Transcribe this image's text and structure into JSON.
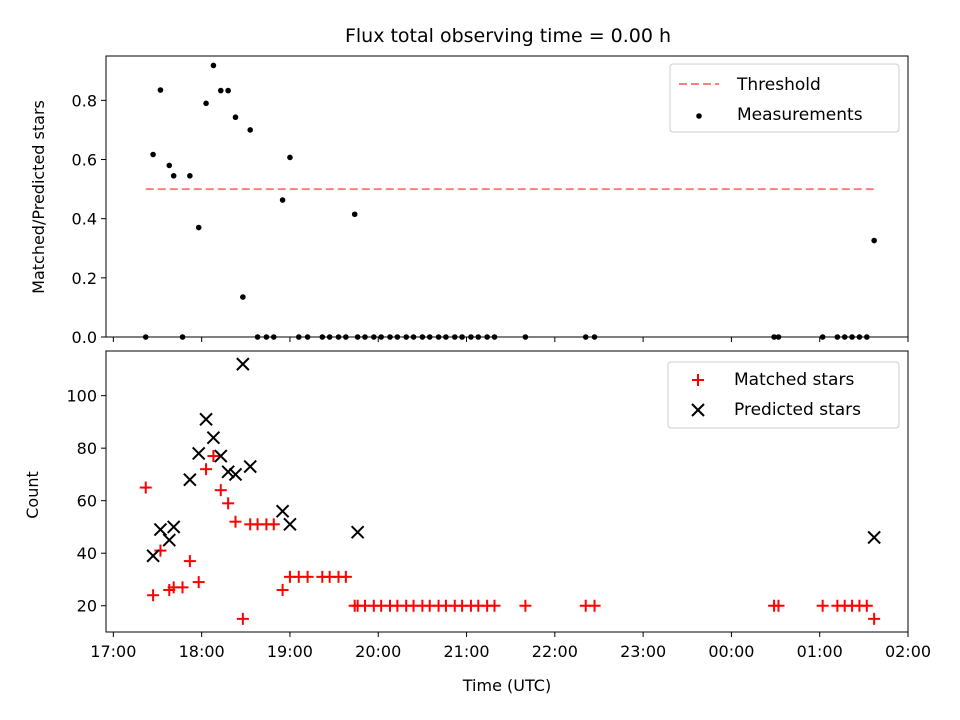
{
  "chart_data": [
    {
      "type": "scatter",
      "title": "Flux total observing time = 0.00 h",
      "xlabel": "",
      "ylabel": "Matched/Predicted stars",
      "xlim": [
        "16:55",
        "26:00"
      ],
      "ylim": [
        0,
        0.95
      ],
      "yticks": [
        0,
        0.2,
        0.4,
        0.6,
        0.8
      ],
      "ytick_labels": [
        "0.0",
        "0.2",
        "0.4",
        "0.6",
        "0.8"
      ],
      "threshold": {
        "name": "Threshold",
        "value": 0.5,
        "x_range": [
          "17:22",
          "25:37"
        ],
        "color": "#ff7f7f",
        "style": "dashed"
      },
      "legend": {
        "position": "top-right",
        "entries": [
          "Threshold",
          "Measurements"
        ]
      },
      "series": [
        {
          "name": "Measurements",
          "color": "#000000",
          "marker": "dot",
          "x": [
            "17:22",
            "17:27",
            "17:32",
            "17:38",
            "17:41",
            "17:47",
            "17:52",
            "17:58",
            "18:03",
            "18:08",
            "18:13",
            "18:18",
            "18:23",
            "18:28",
            "18:33",
            "18:38",
            "18:44",
            "18:49",
            "18:55",
            "19:00",
            "19:06",
            "19:12",
            "19:22",
            "19:27",
            "19:33",
            "19:38",
            "19:44",
            "19:46",
            "19:51",
            "19:57",
            "20:02",
            "20:08",
            "20:13",
            "20:19",
            "20:24",
            "20:30",
            "20:35",
            "20:41",
            "20:46",
            "20:52",
            "20:57",
            "21:03",
            "21:08",
            "21:14",
            "21:19",
            "21:40",
            "22:21",
            "22:27",
            "24:29",
            "24:32",
            "25:02",
            "25:12",
            "25:17",
            "25:22",
            "25:27",
            "25:32",
            "25:37"
          ],
          "y": [
            0,
            0.617,
            0.835,
            0.58,
            0.545,
            0,
            0.545,
            0.37,
            0.79,
            0.918,
            0.833,
            0.833,
            0.743,
            0.135,
            0.7,
            0,
            0,
            0,
            0.463,
            0.607,
            0,
            0,
            0,
            0,
            0,
            0,
            0.415,
            0,
            0,
            0,
            0,
            0,
            0,
            0,
            0,
            0,
            0,
            0,
            0,
            0,
            0,
            0,
            0,
            0,
            0,
            0,
            0,
            0,
            0,
            0,
            0,
            0,
            0,
            0,
            0,
            0,
            0.326
          ]
        }
      ]
    },
    {
      "type": "scatter",
      "title": "",
      "xlabel": "Time (UTC)",
      "ylabel": "Count",
      "xlim": [
        "16:55",
        "26:00"
      ],
      "ylim": [
        10,
        117
      ],
      "xticks": [
        "17:00",
        "18:00",
        "19:00",
        "20:00",
        "21:00",
        "22:00",
        "23:00",
        "24:00",
        "25:00",
        "26:00"
      ],
      "xtick_labels": [
        "17:00",
        "18:00",
        "19:00",
        "20:00",
        "21:00",
        "22:00",
        "23:00",
        "00:00",
        "01:00",
        "02:00"
      ],
      "yticks": [
        20,
        40,
        60,
        80,
        100
      ],
      "ytick_labels": [
        "20",
        "40",
        "60",
        "80",
        "100"
      ],
      "legend": {
        "position": "top-right",
        "entries": [
          "Matched stars",
          "Predicted stars"
        ]
      },
      "series": [
        {
          "name": "Matched stars",
          "color": "#ff0000",
          "marker": "plus",
          "x": [
            "17:22",
            "17:27",
            "17:32",
            "17:38",
            "17:41",
            "17:47",
            "17:52",
            "17:58",
            "18:03",
            "18:08",
            "18:13",
            "18:18",
            "18:23",
            "18:28",
            "18:33",
            "18:38",
            "18:44",
            "18:49",
            "18:55",
            "19:00",
            "19:06",
            "19:12",
            "19:22",
            "19:27",
            "19:33",
            "19:38",
            "19:44",
            "19:46",
            "19:51",
            "19:57",
            "20:02",
            "20:08",
            "20:13",
            "20:19",
            "20:24",
            "20:30",
            "20:35",
            "20:41",
            "20:46",
            "20:52",
            "20:57",
            "21:03",
            "21:08",
            "21:14",
            "21:19",
            "21:40",
            "22:21",
            "22:27",
            "24:29",
            "24:32",
            "25:02",
            "25:12",
            "25:17",
            "25:22",
            "25:27",
            "25:32",
            "25:37"
          ],
          "y": [
            65,
            24,
            41,
            26,
            27,
            27,
            37,
            29,
            72,
            77,
            64,
            59,
            52,
            15,
            51,
            51,
            51,
            51,
            26,
            31,
            31,
            31,
            31,
            31,
            31,
            31,
            20,
            20,
            20,
            20,
            20,
            20,
            20,
            20,
            20,
            20,
            20,
            20,
            20,
            20,
            20,
            20,
            20,
            20,
            20,
            20,
            20,
            20,
            20,
            20,
            20,
            20,
            20,
            20,
            20,
            20,
            15
          ]
        },
        {
          "name": "Predicted stars",
          "color": "#000000",
          "marker": "x",
          "x": [
            "17:27",
            "17:32",
            "17:38",
            "17:41",
            "17:52",
            "17:58",
            "18:03",
            "18:08",
            "18:13",
            "18:18",
            "18:23",
            "18:28",
            "18:33",
            "18:55",
            "19:00",
            "19:46",
            "25:37"
          ],
          "y": [
            39,
            49,
            45,
            50,
            68,
            78,
            91,
            84,
            77,
            71,
            70,
            112,
            73,
            56,
            51,
            48,
            46
          ]
        }
      ]
    }
  ]
}
